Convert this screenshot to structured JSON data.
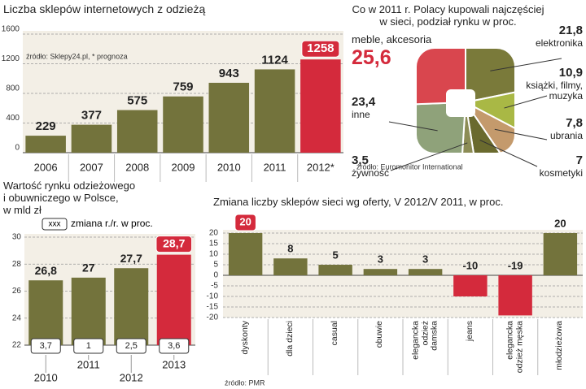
{
  "chart_data": [
    {
      "type": "bar",
      "title": "Liczba sklepów internetowych z odzieżą",
      "source": "źródło: Sklepy24.pl, * prognoza",
      "categories": [
        "2006",
        "2007",
        "2008",
        "2009",
        "2010",
        "2011",
        "2012*"
      ],
      "values": [
        229,
        377,
        575,
        759,
        943,
        1124,
        1258
      ],
      "colors": [
        "#73733c",
        "#73733c",
        "#73733c",
        "#73733c",
        "#73733c",
        "#73733c",
        "#d42a3c"
      ],
      "ylim": [
        0,
        1600
      ],
      "yticks": [
        0,
        400,
        800,
        1200,
        1600
      ],
      "grid": true
    },
    {
      "type": "pie",
      "title": "Co w 2011 r. Polacy kupowali najczęściej w sieci, podział rynku w proc.",
      "source": "źródło: Euromonitor International",
      "categories": [
        "elektronika",
        "książki, filmy, muzyka",
        "ubrania",
        "kosmetyki",
        "żywność",
        "inne",
        "meble, akcesoria"
      ],
      "values": [
        21.8,
        10.9,
        7.8,
        7,
        3.5,
        23.4,
        25.6
      ],
      "value_labels": [
        "21,8",
        "10,9",
        "7,8",
        "7",
        "3,5",
        "23,4",
        "25,6"
      ],
      "colors": [
        "#7a7a3a",
        "#a9b845",
        "#c49a6c",
        "#6a6a2e",
        "#8c8c55",
        "#8fa27a",
        "#d9464e"
      ]
    },
    {
      "type": "bar",
      "title": [
        "Wartość rynku odzieżowego",
        "i obuwniczego w Polsce,",
        "w mld zł"
      ],
      "legend_sample": "xxx",
      "legend_label": "zmiana r./r. w proc.",
      "categories": [
        "2010",
        "2011",
        "2012",
        "2013"
      ],
      "values": [
        26.8,
        27,
        27.7,
        28.7
      ],
      "value_labels": [
        "26,8",
        "27",
        "27,7",
        "28,7"
      ],
      "changes": [
        3.7,
        1,
        2.5,
        3.6
      ],
      "change_labels": [
        "3,7",
        "1",
        "2,5",
        "3,6"
      ],
      "colors": [
        "#73733c",
        "#73733c",
        "#73733c",
        "#d42a3c"
      ],
      "ylim": [
        22,
        30
      ],
      "yticks": [
        22,
        24,
        26,
        28,
        30
      ],
      "grid": true
    },
    {
      "type": "bar",
      "title": "Zmiana liczby sklepów sieci wg oferty, V 2012/V 2011, w proc.",
      "source": "źródło: PMR",
      "categories": [
        "dyskonty",
        "dla dzieci",
        "casual",
        "obuwie",
        "elegancka odzież damska",
        "jeans",
        "elegancka odzież męska",
        "młodzieżowa"
      ],
      "values": [
        20,
        8,
        5,
        3,
        3,
        -10,
        -19,
        20
      ],
      "colors": [
        "#73733c",
        "#73733c",
        "#73733c",
        "#73733c",
        "#73733c",
        "#d42a3c",
        "#d42a3c",
        "#73733c"
      ],
      "ylim": [
        -20,
        20
      ],
      "yticks": [
        20,
        15,
        10,
        5,
        0,
        -5,
        -10,
        -15,
        -20
      ],
      "grid": true
    }
  ]
}
